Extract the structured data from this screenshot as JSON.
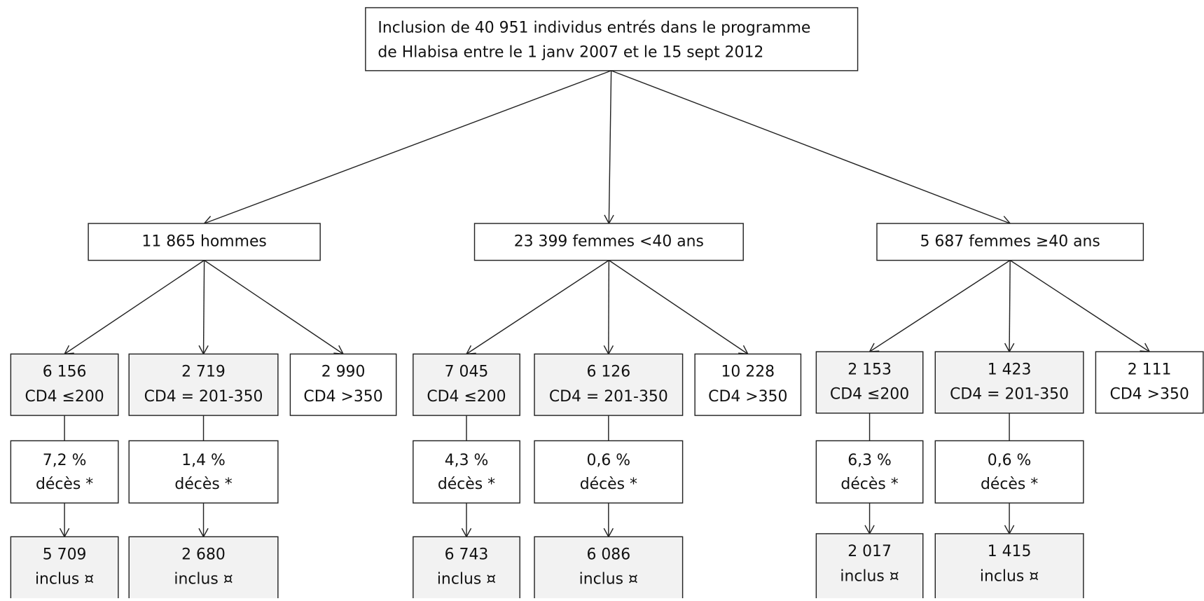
{
  "root": {
    "lines": [
      "Inclusion de 40 951 individus entrés dans le programme",
      "de Hlabisa entre le 1 janv 2007 et le 15 sept 2012"
    ]
  },
  "groups": [
    {
      "label": "11 865 hommes",
      "strata": [
        {
          "count": "6 156",
          "cd4": "CD4 ≤200",
          "deaths": "7,2 %",
          "deaths_label": "décès *",
          "included": "5 709",
          "included_label": "inclus ¤"
        },
        {
          "count": "2 719",
          "cd4": "CD4 = 201-350",
          "deaths": "1,4 %",
          "deaths_label": "décès *",
          "included": "2 680",
          "included_label": "inclus ¤"
        },
        {
          "count": "2 990",
          "cd4": "CD4 >350"
        }
      ]
    },
    {
      "label": "23 399 femmes <40 ans",
      "strata": [
        {
          "count": "7 045",
          "cd4": "CD4 ≤200",
          "deaths": "4,3 %",
          "deaths_label": "décès *",
          "included": "6 743",
          "included_label": "inclus ¤"
        },
        {
          "count": "6 126",
          "cd4": "CD4 = 201-350",
          "deaths": "0,6 %",
          "deaths_label": "décès *",
          "included": "6 086",
          "included_label": "inclus ¤"
        },
        {
          "count": "10 228",
          "cd4": "CD4 >350"
        }
      ]
    },
    {
      "label": "5 687 femmes ≥40 ans",
      "strata": [
        {
          "count": "2 153",
          "cd4": "CD4 ≤200",
          "deaths": "6,3 %",
          "deaths_label": "décès *",
          "included": "2 017",
          "included_label": "inclus ¤"
        },
        {
          "count": "1 423",
          "cd4": "CD4 = 201-350",
          "deaths": "0,6 %",
          "deaths_label": "décès *",
          "included": "1 415",
          "included_label": "inclus ¤"
        },
        {
          "count": "2 111",
          "cd4": "CD4 >350"
        }
      ]
    }
  ]
}
